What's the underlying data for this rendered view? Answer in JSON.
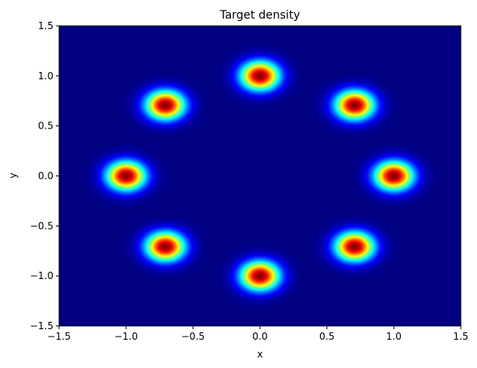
{
  "chart_data": {
    "type": "heatmap",
    "title": "Target density",
    "xlabel": "x",
    "ylabel": "y",
    "xlim": [
      -1.5,
      1.5
    ],
    "ylim": [
      -1.5,
      1.5
    ],
    "xticks": [
      -1.5,
      -1.0,
      -0.5,
      0.0,
      0.5,
      1.0,
      1.5
    ],
    "yticks": [
      -1.5,
      -1.0,
      -0.5,
      0.0,
      0.5,
      1.0,
      1.5
    ],
    "xtick_labels": [
      "−1.5",
      "−1.0",
      "−0.5",
      "0.0",
      "0.5",
      "1.0",
      "1.5"
    ],
    "ytick_labels": [
      "−1.5",
      "−1.0",
      "−0.5",
      "0.0",
      "0.5",
      "1.0",
      "1.5"
    ],
    "colormap": "jet",
    "grid": false,
    "components": [
      {
        "x": 1.0,
        "y": 0.0
      },
      {
        "x": 0.707,
        "y": 0.707
      },
      {
        "x": 0.0,
        "y": 1.0
      },
      {
        "x": -0.707,
        "y": 0.707
      },
      {
        "x": -1.0,
        "y": 0.0
      },
      {
        "x": -0.707,
        "y": -0.707
      },
      {
        "x": 0.0,
        "y": -1.0
      },
      {
        "x": 0.707,
        "y": -0.707
      }
    ],
    "component_std": 0.1
  }
}
